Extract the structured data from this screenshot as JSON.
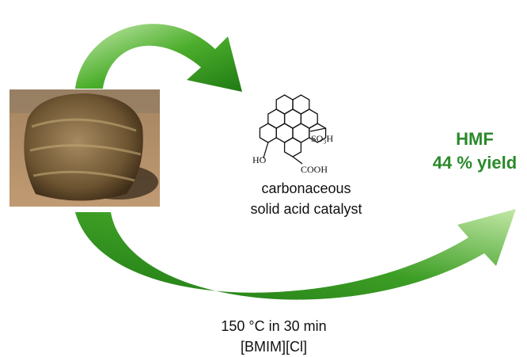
{
  "catalyst": {
    "groups": [
      "SO₃H",
      "HO",
      "COOH"
    ],
    "label_lines": [
      "carbonaceous",
      "solid acid catalyst"
    ]
  },
  "product": {
    "name": "HMF",
    "yield": "44 % yield"
  },
  "conditions": [
    "150 °C in 30 min",
    "[BMIM][Cl]"
  ]
}
